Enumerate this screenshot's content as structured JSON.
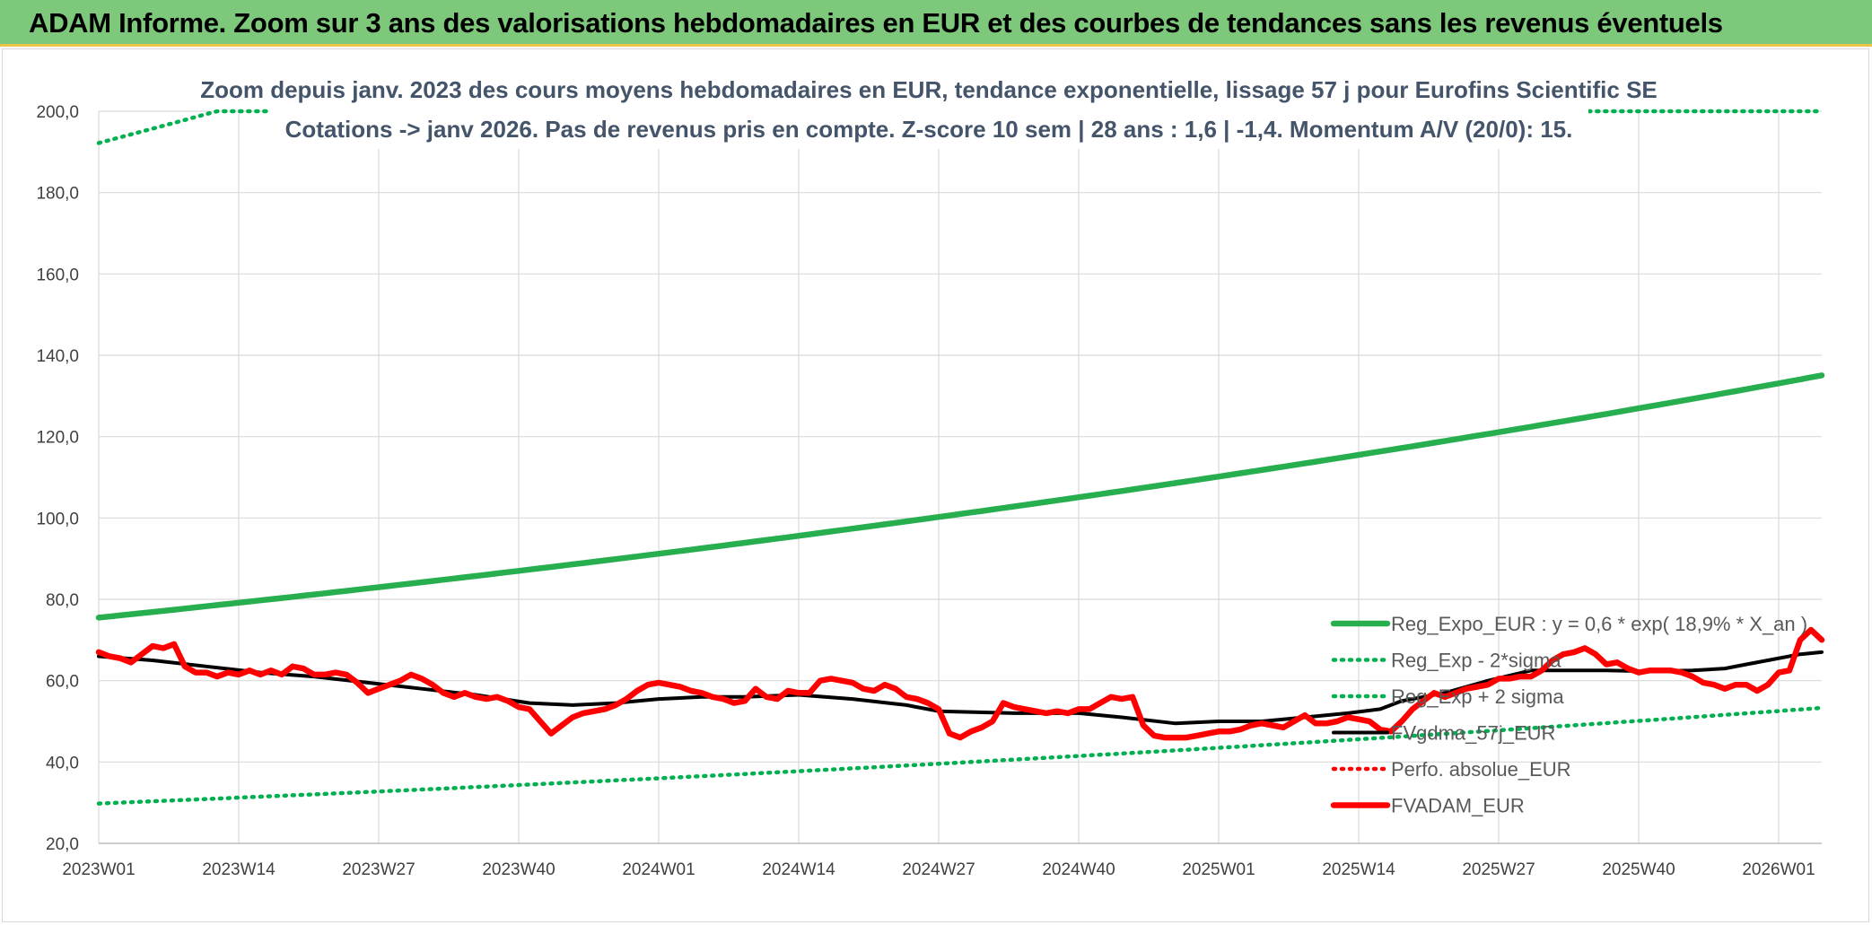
{
  "header": {
    "title": "ADAM Informe. Zoom sur 3 ans des valorisations hebdomadaires en EUR et des courbes de tendances sans les revenus éventuels"
  },
  "colors": {
    "header_bg": "#7dc87a",
    "green": "#00b050",
    "trend_green": "#27ae4e",
    "red": "#ff0000",
    "black": "#000000",
    "grid": "#d9d9d9"
  },
  "chart_data": {
    "type": "line",
    "title_line1": "Zoom depuis janv. 2023 des cours moyens hebdomadaires en EUR, tendance exponentielle, lissage 57 j pour Eurofins Scientific SE",
    "title_line2": "Cotations -> janv 2026. Pas de revenus pris en compte. Z-score 10 sem | 28 ans : 1,6 | -1,4. Momentum A/V (20/0): 15.",
    "ylim": [
      20,
      200
    ],
    "yticks": [
      "20,0",
      "40,0",
      "60,0",
      "80,0",
      "100,0",
      "120,0",
      "140,0",
      "160,0",
      "180,0",
      "200,0"
    ],
    "ytick_values": [
      20,
      40,
      60,
      80,
      100,
      120,
      140,
      160,
      180,
      200
    ],
    "x_labels": [
      "2023W01",
      "2023W14",
      "2023W27",
      "2023W40",
      "2024W01",
      "2024W14",
      "2024W27",
      "2024W40",
      "2025W01",
      "2025W14",
      "2025W27",
      "2025W40",
      "2026W01"
    ],
    "x_label_weeks": [
      0,
      13,
      26,
      39,
      52,
      65,
      78,
      91,
      104,
      117,
      130,
      143,
      156
    ],
    "week_count": 161,
    "grid": true,
    "legend_position": "bottom-right",
    "series": [
      {
        "name": "Reg_Expo_EUR : y = 0,6 * exp( 18,9% *  X_an )",
        "style": "solid-thick",
        "color": "#27ae4e",
        "exp": {
          "start": 75.5,
          "annual_growth": 0.189
        }
      },
      {
        "name": "Reg_Exp - 2*sigma",
        "style": "dotted",
        "color": "#00b050",
        "exp": {
          "start": 29.8,
          "annual_growth": 0.189
        }
      },
      {
        "name": "Reg_Exp + 2 sigma",
        "style": "dotted",
        "color": "#00b050",
        "exp": {
          "start": 192.2,
          "annual_growth": 0.189
        },
        "cap": 200
      },
      {
        "name": "FVgdma_57j_EUR",
        "style": "solid",
        "color": "#000000",
        "points": [
          [
            0,
            66
          ],
          [
            5,
            65
          ],
          [
            10,
            63.5
          ],
          [
            15,
            62
          ],
          [
            20,
            61
          ],
          [
            25,
            59.5
          ],
          [
            30,
            58
          ],
          [
            35,
            56.5
          ],
          [
            40,
            54.5
          ],
          [
            44,
            54
          ],
          [
            48,
            54.5
          ],
          [
            52,
            55.5
          ],
          [
            56,
            56
          ],
          [
            60,
            56
          ],
          [
            65,
            56.5
          ],
          [
            70,
            55.5
          ],
          [
            75,
            54
          ],
          [
            78,
            52.5
          ],
          [
            85,
            52
          ],
          [
            91,
            52
          ],
          [
            95,
            51
          ],
          [
            100,
            49.5
          ],
          [
            104,
            50
          ],
          [
            108,
            50
          ],
          [
            112,
            51
          ],
          [
            116,
            52
          ],
          [
            119,
            53
          ],
          [
            121,
            55
          ],
          [
            125,
            57
          ],
          [
            129,
            60
          ],
          [
            133,
            62.5
          ],
          [
            136,
            62.5
          ],
          [
            140,
            62.5
          ],
          [
            144,
            62.3
          ],
          [
            148,
            62.5
          ],
          [
            151,
            63
          ],
          [
            153,
            64
          ],
          [
            155,
            65
          ],
          [
            158,
            66.5
          ],
          [
            160,
            67
          ]
        ]
      },
      {
        "name": "Perfo. absolue_EUR",
        "style": "dotted",
        "color": "#ff0000",
        "points": []
      },
      {
        "name": "FVADAM_EUR",
        "style": "solid-thick",
        "color": "#ff0000",
        "points": [
          [
            0,
            67
          ],
          [
            1,
            66
          ],
          [
            2,
            65.5
          ],
          [
            3,
            64.5
          ],
          [
            4,
            66.5
          ],
          [
            5,
            68.5
          ],
          [
            6,
            68
          ],
          [
            7,
            69
          ],
          [
            8,
            63.5
          ],
          [
            9,
            62
          ],
          [
            10,
            62
          ],
          [
            11,
            61
          ],
          [
            12,
            62
          ],
          [
            13,
            61.5
          ],
          [
            14,
            62.5
          ],
          [
            15,
            61.5
          ],
          [
            16,
            62.5
          ],
          [
            17,
            61.5
          ],
          [
            18,
            63.5
          ],
          [
            19,
            63
          ],
          [
            20,
            61.5
          ],
          [
            21,
            61.5
          ],
          [
            22,
            62
          ],
          [
            23,
            61.5
          ],
          [
            24,
            59.5
          ],
          [
            25,
            57
          ],
          [
            26,
            58
          ],
          [
            27,
            59
          ],
          [
            28,
            60
          ],
          [
            29,
            61.5
          ],
          [
            30,
            60.5
          ],
          [
            31,
            59
          ],
          [
            32,
            57
          ],
          [
            33,
            56
          ],
          [
            34,
            57
          ],
          [
            35,
            56
          ],
          [
            36,
            55.5
          ],
          [
            37,
            56
          ],
          [
            38,
            55
          ],
          [
            39,
            53.5
          ],
          [
            40,
            53
          ],
          [
            41,
            50
          ],
          [
            42,
            47
          ],
          [
            43,
            49
          ],
          [
            44,
            51
          ],
          [
            45,
            52
          ],
          [
            46,
            52.5
          ],
          [
            47,
            53
          ],
          [
            48,
            54
          ],
          [
            49,
            55.5
          ],
          [
            50,
            57.5
          ],
          [
            51,
            59
          ],
          [
            52,
            59.5
          ],
          [
            53,
            59
          ],
          [
            54,
            58.5
          ],
          [
            55,
            57.5
          ],
          [
            56,
            57
          ],
          [
            57,
            56
          ],
          [
            58,
            55.5
          ],
          [
            59,
            54.5
          ],
          [
            60,
            55
          ],
          [
            61,
            58
          ],
          [
            62,
            56
          ],
          [
            63,
            55.5
          ],
          [
            64,
            57.5
          ],
          [
            65,
            57
          ],
          [
            66,
            57
          ],
          [
            67,
            60
          ],
          [
            68,
            60.5
          ],
          [
            69,
            60
          ],
          [
            70,
            59.5
          ],
          [
            71,
            58
          ],
          [
            72,
            57.5
          ],
          [
            73,
            59
          ],
          [
            74,
            58
          ],
          [
            75,
            56
          ],
          [
            76,
            55.5
          ],
          [
            77,
            54.5
          ],
          [
            78,
            53
          ],
          [
            79,
            47
          ],
          [
            80,
            46
          ],
          [
            81,
            47.5
          ],
          [
            82,
            48.5
          ],
          [
            83,
            50
          ],
          [
            84,
            54.5
          ],
          [
            85,
            53.5
          ],
          [
            86,
            53
          ],
          [
            87,
            52.5
          ],
          [
            88,
            52
          ],
          [
            89,
            52.5
          ],
          [
            90,
            52
          ],
          [
            91,
            53
          ],
          [
            92,
            53
          ],
          [
            93,
            54.5
          ],
          [
            94,
            56
          ],
          [
            95,
            55.5
          ],
          [
            96,
            56
          ],
          [
            97,
            49
          ],
          [
            98,
            46.5
          ],
          [
            99,
            46
          ],
          [
            100,
            46
          ],
          [
            101,
            46
          ],
          [
            102,
            46.5
          ],
          [
            103,
            47
          ],
          [
            104,
            47.5
          ],
          [
            105,
            47.5
          ],
          [
            106,
            48
          ],
          [
            107,
            49
          ],
          [
            108,
            49.5
          ],
          [
            109,
            49
          ],
          [
            110,
            48.5
          ],
          [
            111,
            50
          ],
          [
            112,
            51.5
          ],
          [
            113,
            49.5
          ],
          [
            114,
            49.5
          ],
          [
            115,
            50
          ],
          [
            116,
            51
          ],
          [
            117,
            50.5
          ],
          [
            118,
            50
          ],
          [
            119,
            48
          ],
          [
            120,
            47.5
          ],
          [
            121,
            50
          ],
          [
            122,
            53
          ],
          [
            123,
            55
          ],
          [
            124,
            57
          ],
          [
            125,
            56
          ],
          [
            126,
            57
          ],
          [
            127,
            58
          ],
          [
            128,
            58.5
          ],
          [
            129,
            59
          ],
          [
            130,
            60.5
          ],
          [
            131,
            60.5
          ],
          [
            132,
            61
          ],
          [
            133,
            61
          ],
          [
            134,
            62.5
          ],
          [
            135,
            65
          ],
          [
            136,
            66.5
          ],
          [
            137,
            67
          ],
          [
            138,
            68
          ],
          [
            139,
            66.5
          ],
          [
            140,
            64
          ],
          [
            141,
            64.5
          ],
          [
            142,
            63
          ],
          [
            143,
            62
          ],
          [
            144,
            62.5
          ],
          [
            145,
            62.5
          ],
          [
            146,
            62.5
          ],
          [
            147,
            62
          ],
          [
            148,
            61
          ],
          [
            149,
            59.5
          ],
          [
            150,
            59
          ],
          [
            151,
            58
          ],
          [
            152,
            59
          ],
          [
            153,
            59
          ],
          [
            154,
            57.5
          ],
          [
            155,
            59
          ],
          [
            156,
            62
          ],
          [
            157,
            62.5
          ],
          [
            158,
            70
          ],
          [
            159,
            72.5
          ],
          [
            160,
            70
          ]
        ]
      }
    ]
  }
}
